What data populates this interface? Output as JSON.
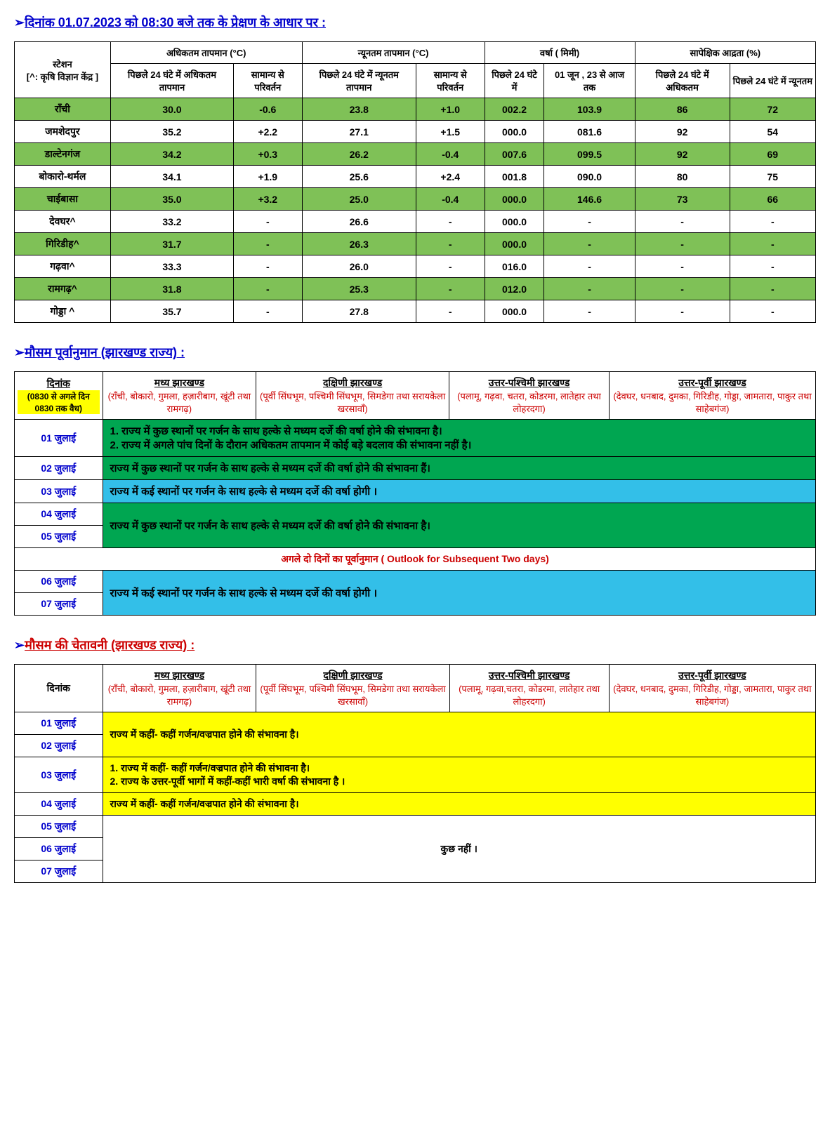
{
  "header_title": "दिनांक  01.07.2023  को  08:30  बजे तक के प्रेक्षण के आधार पर :",
  "obs": {
    "station_label": "स्टेशन",
    "station_note": "[^: कृषि विज्ञान केंद्र ]",
    "maxtemp_group": "अधिकतम तापमान (°C)",
    "mintemp_group": "न्यूनतम तापमान (°C)",
    "rain_group": "वर्षा ( मिमी)",
    "humidity_group": "सापेक्षिक आद्रता (%)",
    "maxtemp_24": "पिछले 24 घंटे में अधिकतम तापमान",
    "dep_normal": "सामान्य से परिवर्तन",
    "mintemp_24": "पिछले 24 घंटे में न्यूनतम तापमान",
    "rain_24": "पिछले 24 घंटे में",
    "rain_cum": "01 जून , 23 से आज तक",
    "hum_max": "पिछले 24 घंटे में अधिकतम",
    "hum_min": "पिछले 24 घंटे में न्यूनतम",
    "rows": [
      {
        "s": "राँची",
        "tmax": "30.0",
        "tmaxd": "-0.6",
        "tmin": "23.8",
        "tmind": "+1.0",
        "r24": "002.2",
        "rcum": "103.9",
        "hmax": "86",
        "hmin": "72",
        "hl": true
      },
      {
        "s": "जमशेदपुर",
        "tmax": "35.2",
        "tmaxd": "+2.2",
        "tmin": "27.1",
        "tmind": "+1.5",
        "r24": "000.0",
        "rcum": "081.6",
        "hmax": "92",
        "hmin": "54",
        "hl": false
      },
      {
        "s": "डाल्टेनगंज",
        "tmax": "34.2",
        "tmaxd": "+0.3",
        "tmin": "26.2",
        "tmind": "-0.4",
        "r24": "007.6",
        "rcum": "099.5",
        "hmax": "92",
        "hmin": "69",
        "hl": true
      },
      {
        "s": "बोकारो-थर्मल",
        "tmax": "34.1",
        "tmaxd": "+1.9",
        "tmin": "25.6",
        "tmind": "+2.4",
        "r24": "001.8",
        "rcum": "090.0",
        "hmax": "80",
        "hmin": "75",
        "hl": false
      },
      {
        "s": "चाईबासा",
        "tmax": "35.0",
        "tmaxd": "+3.2",
        "tmin": "25.0",
        "tmind": "-0.4",
        "r24": "000.0",
        "rcum": "146.6",
        "hmax": "73",
        "hmin": "66",
        "hl": true
      },
      {
        "s": "देवघर^",
        "tmax": "33.2",
        "tmaxd": "-",
        "tmin": "26.6",
        "tmind": "-",
        "r24": "000.0",
        "rcum": "-",
        "hmax": "-",
        "hmin": "-",
        "hl": false
      },
      {
        "s": "गिरिडीह^",
        "tmax": "31.7",
        "tmaxd": "-",
        "tmin": "26.3",
        "tmind": "-",
        "r24": "000.0",
        "rcum": "-",
        "hmax": "-",
        "hmin": "-",
        "hl": true
      },
      {
        "s": "गढ़वा^",
        "tmax": "33.3",
        "tmaxd": "-",
        "tmin": "26.0",
        "tmind": "-",
        "r24": "016.0",
        "rcum": "-",
        "hmax": "-",
        "hmin": "-",
        "hl": false
      },
      {
        "s": "रामगढ़^",
        "tmax": "31.8",
        "tmaxd": "-",
        "tmin": "25.3",
        "tmind": "-",
        "r24": "012.0",
        "rcum": "-",
        "hmax": "-",
        "hmin": "-",
        "hl": true
      },
      {
        "s": "गोड्डा ^",
        "tmax": "35.7",
        "tmaxd": "-",
        "tmin": "27.8",
        "tmind": "-",
        "r24": "000.0",
        "rcum": "-",
        "hmax": "-",
        "hmin": "-",
        "hl": false
      }
    ]
  },
  "forecast_title": "मौसम पूर्वानुमान  (झारखण्ड राज्य)  :",
  "regions": {
    "date_label": "दिनांक",
    "date_note": "(0830 से अगले दिन 0830 तक वैध)",
    "c": {
      "name": "मध्य झारखण्ड",
      "sub": "(राँची, बोकारो, गुमला, हज़ारीबाग, खूंटी तथा रामगढ़)"
    },
    "s": {
      "name": "दक्षिणी  झारखण्ड",
      "sub": "(पूर्वी सिंघभूम, पश्चिमी सिंघभूम, सिमडेगा तथा सरायकेला खरसावाँ)"
    },
    "nw": {
      "name": "उत्तर-पश्चिमी झारखण्ड",
      "sub": "(पलामू, गढ़वा, चतरा, कोडरमा, लातेहार तथा लोहरदगा)"
    },
    "ne": {
      "name": "उत्तर-पूर्वी झारखण्ड",
      "sub": "(देवघर, धनबाद, दुमका, गिरिडीह, गोड्डा, जामतारा, पाकुर तथा साहेबगंज)"
    }
  },
  "forecast": {
    "d1": "01  जुलाई",
    "d2": "02  जुलाई",
    "d3": "03  जुलाई",
    "d4": "04  जुलाई",
    "d5": "05  जुलाई",
    "d6": "06  जुलाई",
    "d7": "07  जुलाई",
    "t1a": "1.  राज्य में कुछ स्थानों पर गर्जन के साथ  हल्के से मध्यम दर्जे की वर्षा होने की संभावना  है।",
    "t1b": "2.  राज्य में अगले पांच दिनों के दौरान अधिकतम तापमान में  कोई बड़े बदलाव की संभावना नहीं है।",
    "t2": "राज्य में कुछ स्थानों पर गर्जन के साथ  हल्के से मध्यम दर्जे की वर्षा होने की संभावना  हैं।",
    "t3": "राज्य में कई स्थानों पर गर्जन के साथ  हल्के से मध्यम दर्जे की वर्षा होगी  ।",
    "t45": "राज्य में कुछ स्थानों पर गर्जन के साथ  हल्के से मध्यम दर्जे की वर्षा होने की संभावना  है।",
    "outlook": "अगले दो दिनों का पूर्वानुमान ( Outlook for Subsequent Two days)",
    "t67": "राज्य में कई स्थानों पर गर्जन के साथ  हल्के से मध्यम दर्जे की वर्षा होगी  ।"
  },
  "warning_title": "मौसम  की  चेतावनी (झारखण्ड राज्य)  :",
  "warning": {
    "d1": "01  जुलाई",
    "d2": "02  जुलाई",
    "d3": "03  जुलाई",
    "d4": "04  जुलाई",
    "d5": "05  जुलाई",
    "d6": "06  जुलाई",
    "d7": "07  जुलाई",
    "t12": "राज्य  में  कहीं- कहीं गर्जन/वज्रपात  होने  की संभावना  है।",
    "t3a": "1.  राज्य  में  कहीं- कहीं गर्जन/वज्रपात  होने  की संभावना  है।",
    "t3b": "2.  राज्य के उत्तर-पूर्वी भागों में कहीं-कहीं भारी वर्षा की संभावना है ।",
    "t4": "राज्य  में  कहीं- कहीं गर्जन/वज्रपात  होने  की संभावना  है।",
    "none": "कुछ  नहीं ।"
  },
  "wregions": {
    "c": {
      "name": "मध्य झारखण्ड",
      "sub": "(राँची, बोकारो, गुमला, हज़ारीबाग, खूंटी तथा रामगढ़)"
    },
    "s": {
      "name": "दक्षिणी  झारखण्ड",
      "sub": "(पूर्वी सिंघभूम,  पश्चिमी सिंघभूम, सिमडेगा  तथा सरायकेला खरसावाँ)"
    },
    "nw": {
      "name": "उत्तर-पश्चिमी झारखण्ड",
      "sub": "(पलामू,  गढ़वा,चतरा,  कोडरमा,  लातेहार तथा लोहरदगा)"
    },
    "ne": {
      "name": "उत्तर-पूर्वी झारखण्ड",
      "sub": "(देवघर,  धनबाद, दुमका,  गिरिडीह, गोड्डा, जामतारा, पाकुर तथा साहेबगंज)"
    }
  }
}
